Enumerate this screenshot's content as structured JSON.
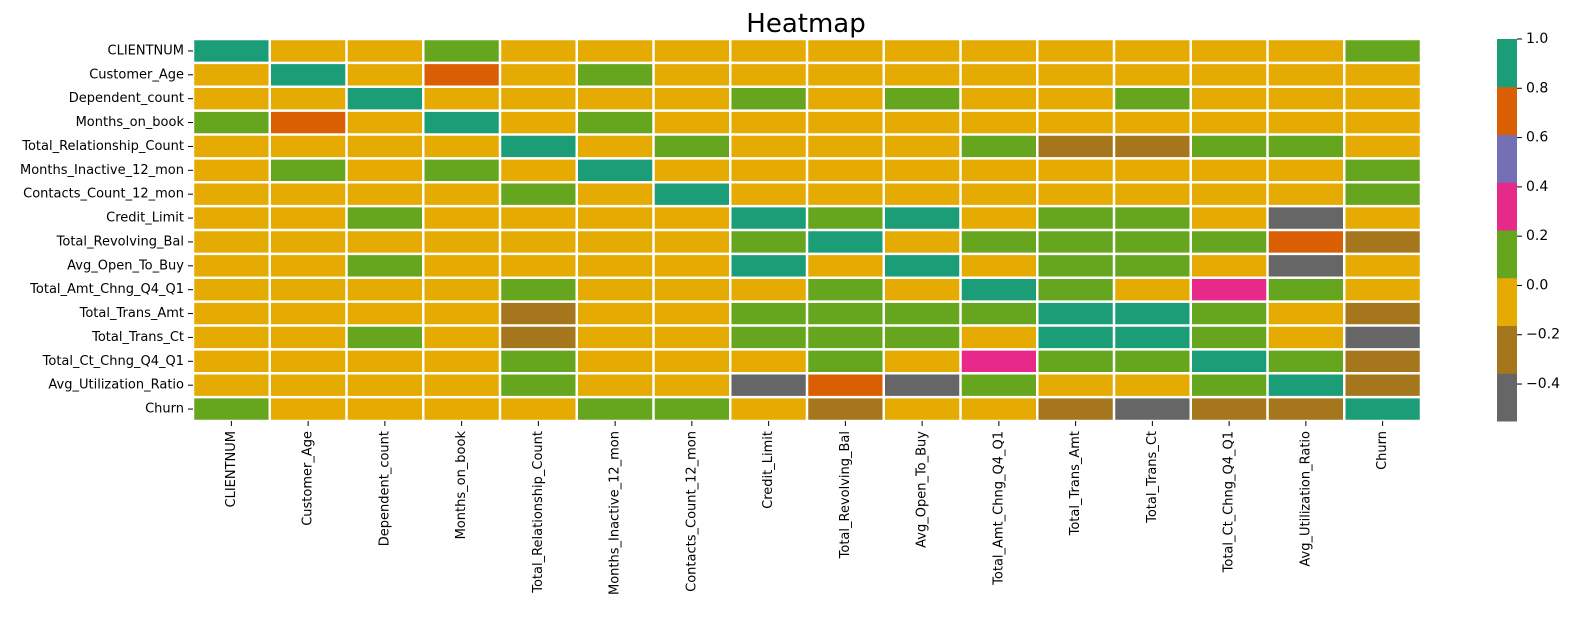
{
  "chart_data": {
    "type": "heatmap",
    "title": "Heatmap",
    "xlabel": "",
    "ylabel": "",
    "rows": [
      "CLIENTNUM",
      "Customer_Age",
      "Dependent_count",
      "Months_on_book",
      "Total_Relationship_Count",
      "Months_Inactive_12_mon",
      "Contacts_Count_12_mon",
      "Credit_Limit",
      "Total_Revolving_Bal",
      "Avg_Open_To_Buy",
      "Total_Amt_Chng_Q4_Q1",
      "Total_Trans_Amt",
      "Total_Trans_Ct",
      "Total_Ct_Chng_Q4_Q1",
      "Avg_Utilization_Ratio",
      "Churn"
    ],
    "columns": [
      "CLIENTNUM",
      "Customer_Age",
      "Dependent_count",
      "Months_on_book",
      "Total_Relationship_Count",
      "Months_Inactive_12_mon",
      "Contacts_Count_12_mon",
      "Credit_Limit",
      "Total_Revolving_Bal",
      "Avg_Open_To_Buy",
      "Total_Amt_Chng_Q4_Q1",
      "Total_Trans_Amt",
      "Total_Trans_Ct",
      "Total_Ct_Chng_Q4_Q1",
      "Avg_Utilization_Ratio",
      "Churn"
    ],
    "values": [
      [
        1.0,
        0.0,
        0.01,
        0.13,
        0.0,
        0.01,
        0.0,
        0.01,
        0.0,
        0.01,
        0.02,
        -0.02,
        0.0,
        0.01,
        0.0,
        0.05
      ],
      [
        0.0,
        1.0,
        -0.12,
        0.79,
        -0.01,
        0.05,
        0.0,
        0.0,
        0.01,
        0.0,
        -0.06,
        -0.05,
        -0.07,
        -0.01,
        0.01,
        0.02
      ],
      [
        0.01,
        -0.12,
        1.0,
        -0.1,
        -0.04,
        -0.01,
        -0.04,
        0.07,
        0.0,
        0.07,
        -0.04,
        0.03,
        0.05,
        0.01,
        -0.04,
        0.02
      ],
      [
        0.13,
        0.79,
        -0.1,
        1.0,
        -0.01,
        0.07,
        -0.01,
        0.01,
        0.01,
        0.01,
        -0.05,
        -0.04,
        -0.05,
        -0.01,
        0.0,
        0.01
      ],
      [
        0.0,
        -0.01,
        -0.04,
        -0.01,
        1.0,
        -0.0,
        0.06,
        -0.07,
        0.01,
        -0.07,
        0.05,
        -0.35,
        -0.24,
        0.04,
        0.07,
        -0.15
      ],
      [
        0.01,
        0.05,
        -0.01,
        0.07,
        -0.0,
        1.0,
        0.03,
        -0.02,
        -0.04,
        -0.02,
        -0.03,
        -0.04,
        -0.04,
        -0.04,
        -0.01,
        0.15
      ],
      [
        0.0,
        0.0,
        -0.04,
        -0.01,
        0.06,
        0.03,
        1.0,
        0.02,
        -0.05,
        0.03,
        -0.02,
        -0.11,
        -0.15,
        -0.09,
        -0.06,
        0.2
      ],
      [
        0.01,
        0.0,
        0.07,
        0.01,
        -0.07,
        -0.02,
        0.02,
        1.0,
        0.04,
        1.0,
        0.01,
        0.17,
        0.08,
        -0.0,
        -0.48,
        -0.02
      ],
      [
        0.0,
        0.01,
        0.0,
        0.01,
        0.01,
        -0.04,
        -0.05,
        0.04,
        1.0,
        -0.05,
        0.06,
        0.06,
        0.06,
        0.09,
        0.62,
        -0.26
      ],
      [
        0.01,
        0.0,
        0.07,
        0.01,
        -0.07,
        -0.02,
        0.03,
        1.0,
        -0.05,
        1.0,
        0.01,
        0.17,
        0.07,
        -0.01,
        -0.54,
        -0.0
      ],
      [
        0.02,
        -0.06,
        -0.04,
        -0.05,
        0.05,
        -0.03,
        -0.02,
        0.01,
        0.06,
        0.01,
        1.0,
        0.04,
        0.01,
        0.38,
        0.04,
        -0.13
      ],
      [
        -0.02,
        -0.05,
        0.03,
        -0.04,
        -0.35,
        -0.04,
        -0.11,
        0.17,
        0.06,
        0.17,
        0.04,
        1.0,
        0.81,
        0.09,
        -0.08,
        -0.17
      ],
      [
        0.0,
        -0.07,
        0.05,
        -0.05,
        -0.24,
        -0.04,
        -0.15,
        0.08,
        0.06,
        0.07,
        0.01,
        0.81,
        1.0,
        0.11,
        0.0,
        -0.37
      ],
      [
        0.01,
        -0.01,
        0.01,
        -0.01,
        0.04,
        -0.04,
        -0.09,
        -0.0,
        0.09,
        -0.01,
        0.38,
        0.09,
        0.11,
        1.0,
        0.07,
        -0.29
      ],
      [
        0.0,
        0.01,
        -0.04,
        0.0,
        0.07,
        -0.01,
        -0.06,
        -0.48,
        0.62,
        -0.54,
        0.04,
        -0.08,
        0.0,
        0.07,
        1.0,
        -0.18
      ],
      [
        0.05,
        0.02,
        0.02,
        0.01,
        -0.15,
        0.15,
        0.2,
        -0.02,
        -0.26,
        -0.0,
        -0.13,
        -0.17,
        -0.37,
        -0.29,
        -0.18,
        1.0
      ]
    ],
    "vmin": -0.55,
    "vmax": 1.0,
    "colorbar_ticks": [
      "1.0",
      "0.8",
      "0.6",
      "0.4",
      "0.2",
      "0.0",
      "−0.2",
      "−0.4"
    ],
    "colorbar_tick_values": [
      1.0,
      0.8,
      0.6,
      0.4,
      0.2,
      0.0,
      -0.2,
      -0.4
    ],
    "colormap": "Dark2",
    "colormap_colors": [
      "#666666",
      "#a6761d",
      "#e6ab02",
      "#66a61e",
      "#e7298a",
      "#7570b3",
      "#d95f02",
      "#1b9e77"
    ],
    "grid": false,
    "legend": "colorbar-right"
  }
}
